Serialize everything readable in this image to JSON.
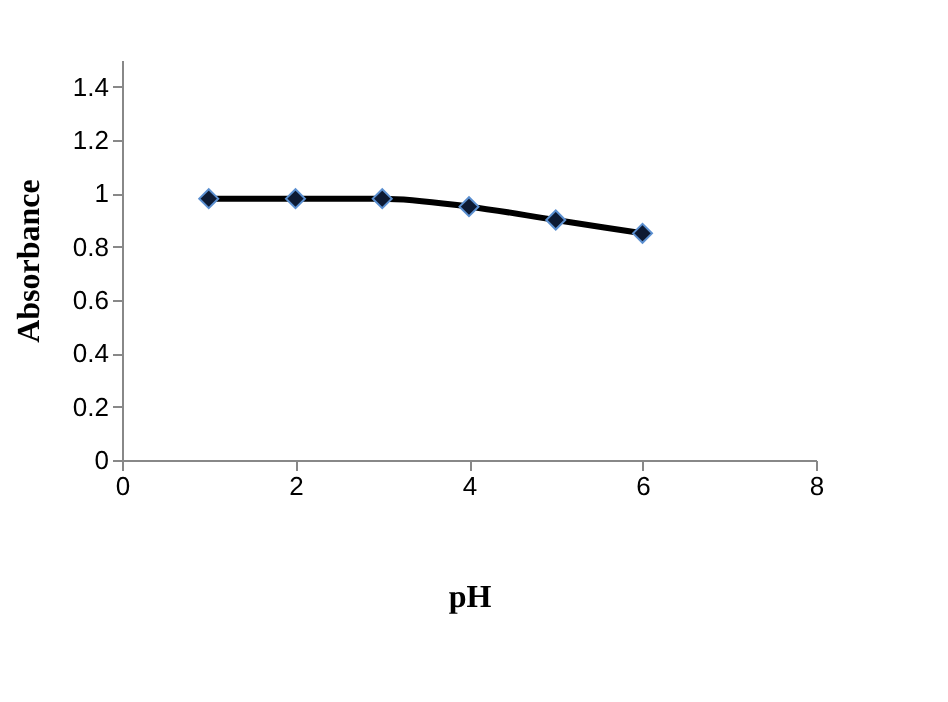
{
  "chart_data": {
    "type": "line",
    "xlabel": "pH",
    "ylabel": "Absorbance",
    "x": [
      1,
      2,
      3,
      4,
      5,
      6
    ],
    "series": [
      {
        "color": "#000000",
        "values": [
          0.98,
          0.98,
          0.98,
          0.95,
          0.9,
          0.85
        ]
      }
    ],
    "xlim": [
      0,
      8
    ],
    "xticks": [
      0,
      2,
      4,
      6,
      8
    ],
    "ylim": [
      0,
      1.5
    ],
    "yticks": [
      0,
      0.2,
      0.4,
      0.6,
      0.8,
      1,
      1.2,
      1.4
    ],
    "marker": "diamond",
    "line_style": "solid",
    "grid": false,
    "legend": false
  }
}
